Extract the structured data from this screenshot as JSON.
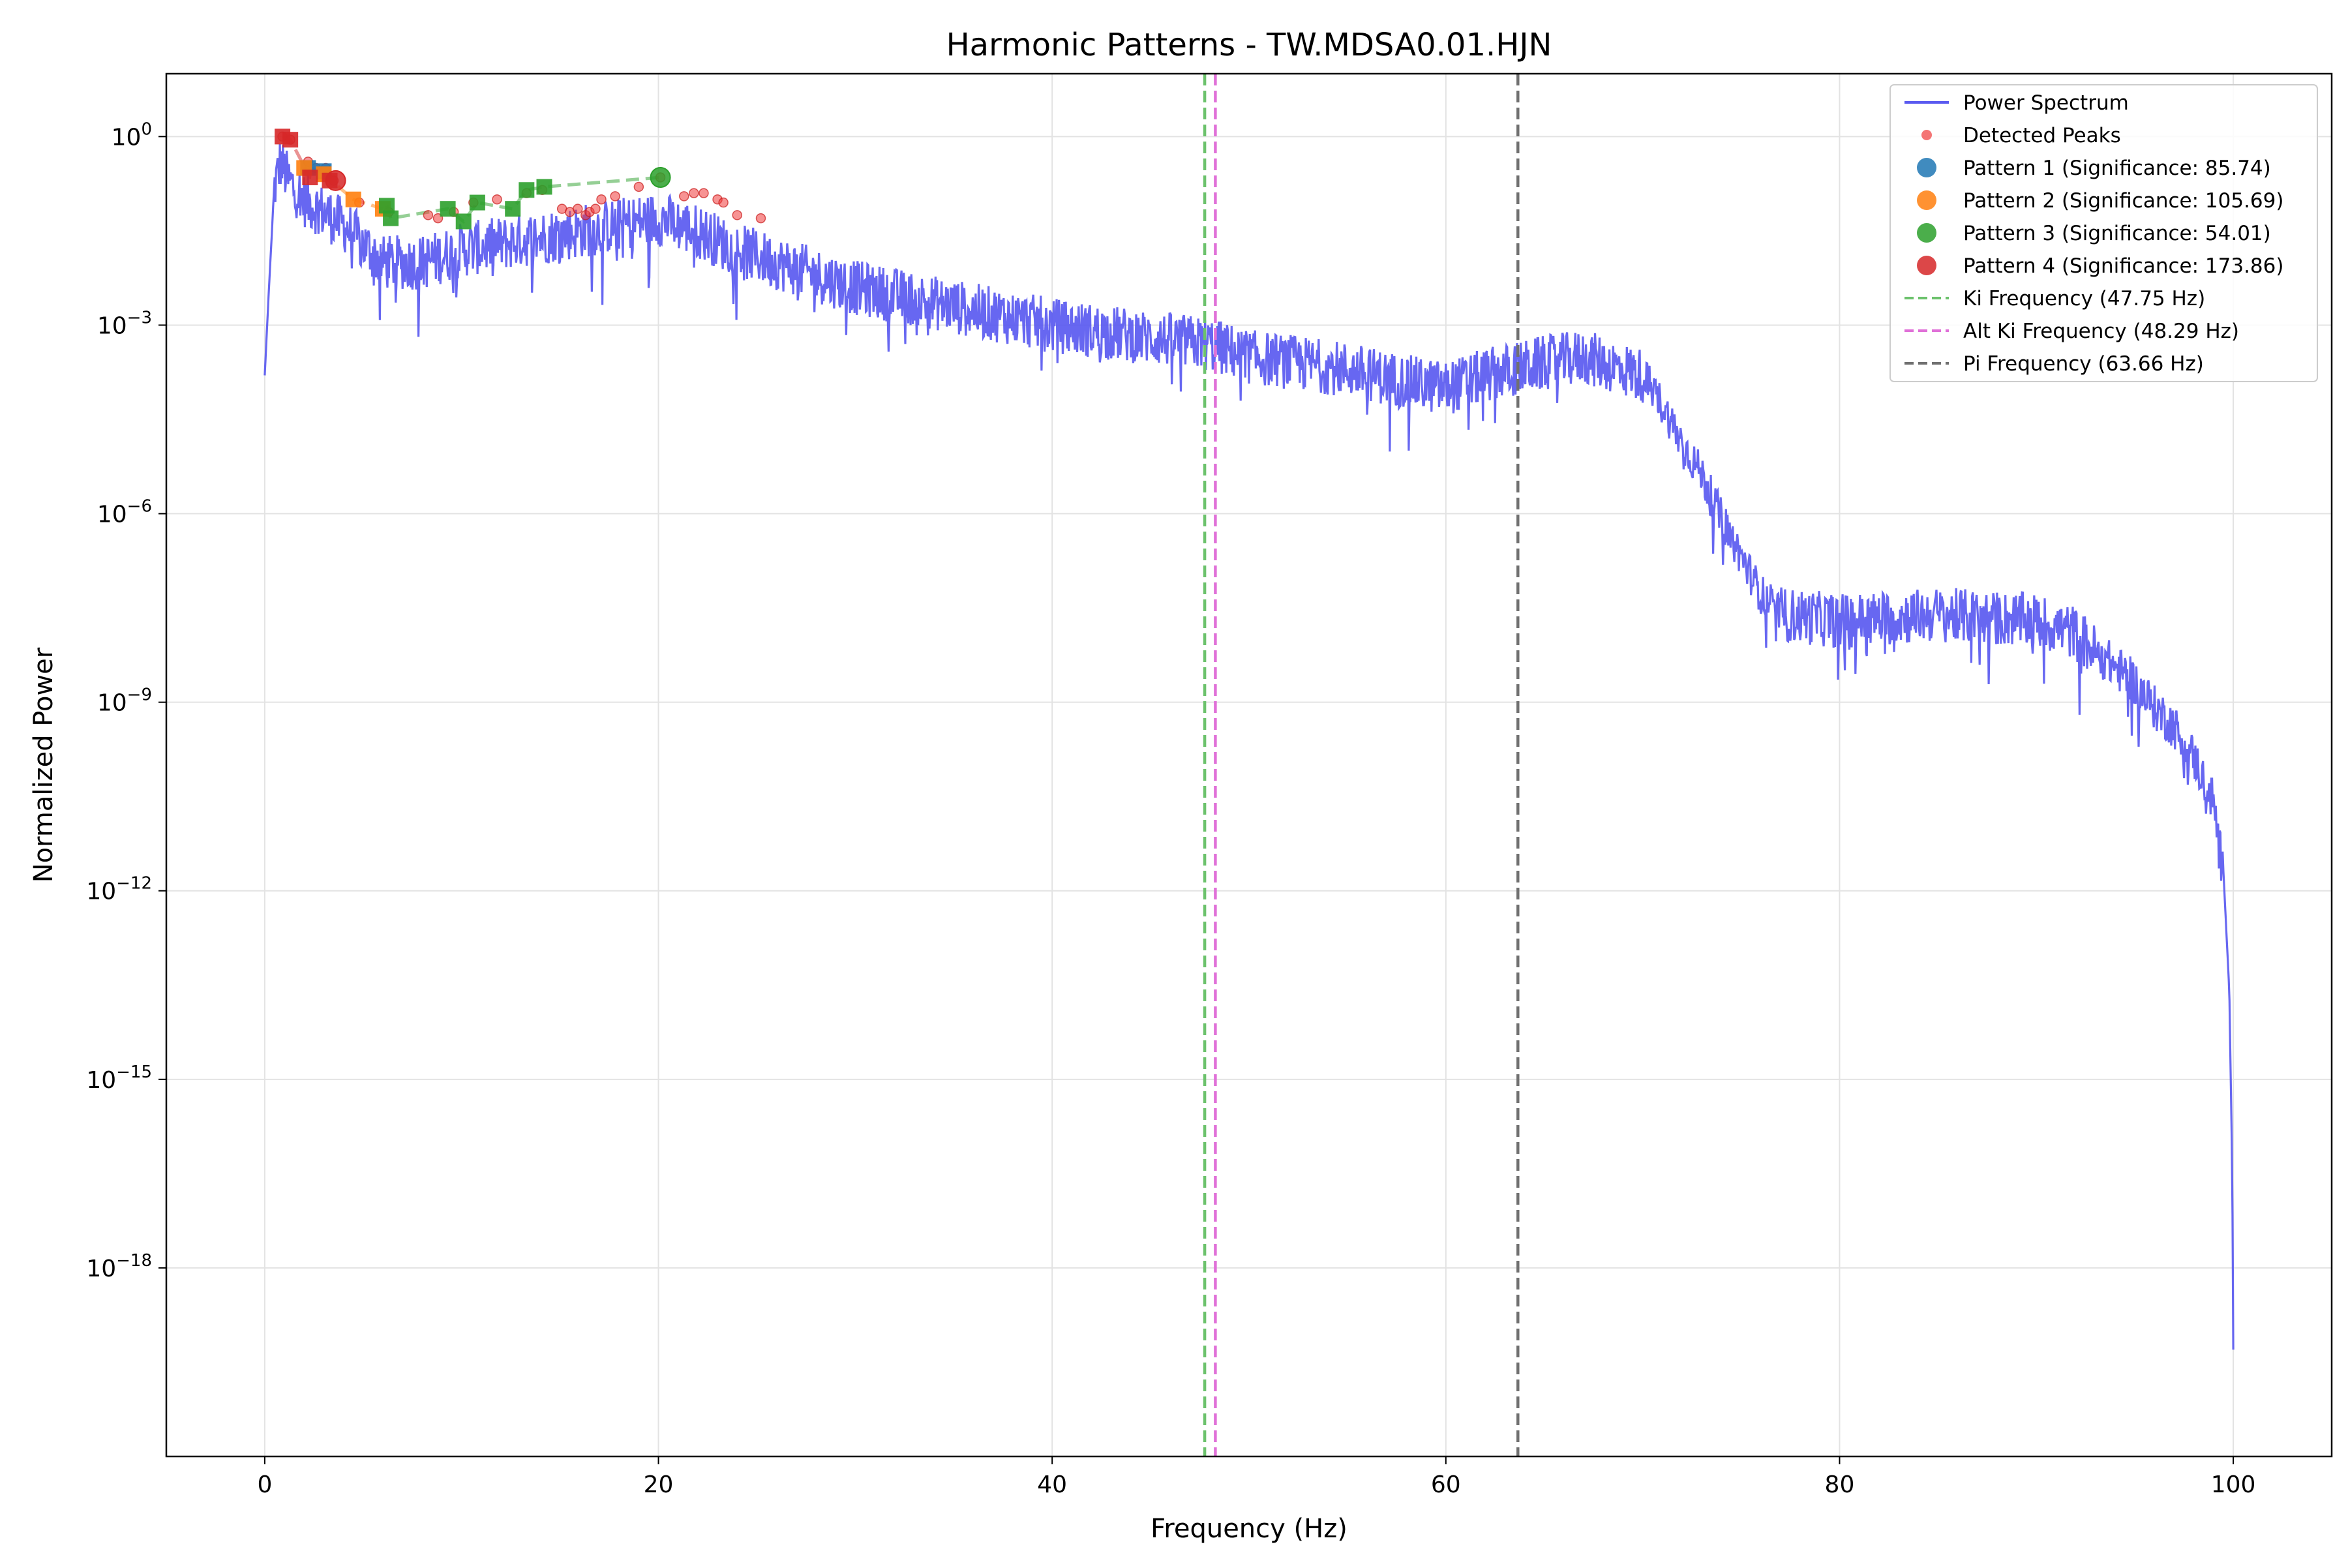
{
  "chart_data": {
    "type": "line",
    "title": "Harmonic Patterns - TW.MDSA0.01.HJN",
    "xlabel": "Frequency (Hz)",
    "ylabel": "Normalized Power",
    "xlim": [
      -5,
      105
    ],
    "ylim_log10": [
      -21,
      1
    ],
    "y_scale": "log",
    "grid": true,
    "legend_position": "top-right",
    "x_ticks": [
      {
        "value": 0,
        "label": "0"
      },
      {
        "value": 20,
        "label": "20"
      },
      {
        "value": 40,
        "label": "40"
      },
      {
        "value": 60,
        "label": "60"
      },
      {
        "value": 80,
        "label": "80"
      },
      {
        "value": 100,
        "label": "100"
      }
    ],
    "y_ticks": [
      {
        "exp": 0,
        "base": "10",
        "sup": "0"
      },
      {
        "exp": -3,
        "base": "10",
        "sup": "−3"
      },
      {
        "exp": -6,
        "base": "10",
        "sup": "−6"
      },
      {
        "exp": -9,
        "base": "10",
        "sup": "−9"
      },
      {
        "exp": -12,
        "base": "10",
        "sup": "−12"
      },
      {
        "exp": -15,
        "base": "10",
        "sup": "−15"
      },
      {
        "exp": -18,
        "base": "10",
        "sup": "−18"
      }
    ],
    "spectrum": {
      "name": "Power Spectrum",
      "color": "#5a5af0",
      "anchors": [
        [
          0,
          -3.8
        ],
        [
          0.2,
          -2.5
        ],
        [
          0.5,
          -0.7
        ],
        [
          0.8,
          -0.3
        ],
        [
          1.2,
          -0.6
        ],
        [
          2,
          -0.9
        ],
        [
          4,
          -1.3
        ],
        [
          6,
          -1.9
        ],
        [
          8,
          -1.9
        ],
        [
          10,
          -1.7
        ],
        [
          12,
          -1.6
        ],
        [
          14,
          -1.5
        ],
        [
          16,
          -1.4
        ],
        [
          18,
          -1.3
        ],
        [
          20,
          -1.2
        ],
        [
          22,
          -1.4
        ],
        [
          24,
          -1.7
        ],
        [
          26,
          -1.9
        ],
        [
          30,
          -2.3
        ],
        [
          35,
          -2.6
        ],
        [
          40,
          -2.9
        ],
        [
          45,
          -3.1
        ],
        [
          48,
          -3.2
        ],
        [
          50,
          -3.4
        ],
        [
          55,
          -3.6
        ],
        [
          58,
          -3.8
        ],
        [
          60,
          -3.9
        ],
        [
          62,
          -3.7
        ],
        [
          65,
          -3.5
        ],
        [
          67,
          -3.4
        ],
        [
          70,
          -3.7
        ],
        [
          71,
          -4.2
        ],
        [
          72,
          -4.8
        ],
        [
          73,
          -5.3
        ],
        [
          74,
          -6.0
        ],
        [
          75,
          -6.6
        ],
        [
          76,
          -7.2
        ],
        [
          77,
          -7.5
        ],
        [
          80,
          -7.6
        ],
        [
          85,
          -7.5
        ],
        [
          90,
          -7.6
        ],
        [
          92,
          -7.8
        ],
        [
          93,
          -8.1
        ],
        [
          95,
          -8.6
        ],
        [
          96,
          -9.0
        ],
        [
          97,
          -9.3
        ],
        [
          98,
          -9.8
        ],
        [
          99,
          -10.5
        ],
        [
          99.5,
          -11.7
        ],
        [
          99.8,
          -13.6
        ],
        [
          99.95,
          -16.5
        ],
        [
          100,
          -19.3
        ]
      ]
    },
    "detected_peaks": {
      "name": "Detected Peaks",
      "color": "#f03a3a",
      "points": [
        [
          0.9,
          0
        ],
        [
          1.3,
          -0.05
        ],
        [
          2.2,
          -0.4
        ],
        [
          2.6,
          -0.5
        ],
        [
          3.1,
          -0.5
        ],
        [
          3.5,
          -0.7
        ],
        [
          4.8,
          -1.05
        ],
        [
          6.3,
          -1.2
        ],
        [
          8.3,
          -1.25
        ],
        [
          8.8,
          -1.3
        ],
        [
          9.6,
          -1.2
        ],
        [
          10.6,
          -1.05
        ],
        [
          11.8,
          -1.0
        ],
        [
          13.3,
          -0.9
        ],
        [
          14.1,
          -0.85
        ],
        [
          15.1,
          -1.15
        ],
        [
          15.5,
          -1.2
        ],
        [
          15.9,
          -1.15
        ],
        [
          16.3,
          -1.25
        ],
        [
          16.5,
          -1.2
        ],
        [
          16.8,
          -1.15
        ],
        [
          17.1,
          -1.0
        ],
        [
          17.8,
          -0.95
        ],
        [
          19.0,
          -0.8
        ],
        [
          20.1,
          -0.65
        ],
        [
          21.3,
          -0.95
        ],
        [
          21.8,
          -0.9
        ],
        [
          22.3,
          -0.9
        ],
        [
          23.0,
          -1.0
        ],
        [
          23.3,
          -1.05
        ],
        [
          24.0,
          -1.25
        ],
        [
          25.2,
          -1.3
        ]
      ]
    },
    "patterns": [
      {
        "name": "Pattern 1 (Significance: 85.74)",
        "color": "#1f77b4",
        "points": [
          [
            2.2,
            -0.5
          ],
          [
            3.0,
            -0.55
          ]
        ]
      },
      {
        "name": "Pattern 2 (Significance: 105.69)",
        "color": "#ff7f0e",
        "points": [
          [
            2.0,
            -0.5
          ],
          [
            3.0,
            -0.6
          ],
          [
            4.5,
            -1.0
          ],
          [
            6.0,
            -1.15
          ]
        ]
      },
      {
        "name": "Pattern 3 (Significance: 54.01)",
        "color": "#2ca02c",
        "points": [
          [
            6.2,
            -1.1
          ],
          [
            6.4,
            -1.3
          ],
          [
            9.3,
            -1.15
          ],
          [
            10.1,
            -1.35
          ],
          [
            10.8,
            -1.05
          ],
          [
            12.6,
            -1.15
          ],
          [
            13.3,
            -0.85
          ],
          [
            14.2,
            -0.8
          ],
          [
            20.1,
            -0.65
          ]
        ]
      },
      {
        "name": "Pattern 4 (Significance: 173.86)",
        "color": "#d62728",
        "points": [
          [
            0.9,
            0
          ],
          [
            1.3,
            -0.05
          ],
          [
            2.3,
            -0.65
          ],
          [
            3.3,
            -0.7
          ],
          [
            3.6,
            -0.7
          ]
        ]
      }
    ],
    "reference_lines": [
      {
        "name": "Ki Frequency (47.75 Hz)",
        "x": 47.75,
        "color": "#6cc26c"
      },
      {
        "name": "Alt Ki Frequency (48.29 Hz)",
        "x": 48.29,
        "color": "#e070d8"
      },
      {
        "name": "Pi Frequency (63.66 Hz)",
        "x": 63.66,
        "color": "#707070"
      }
    ]
  }
}
